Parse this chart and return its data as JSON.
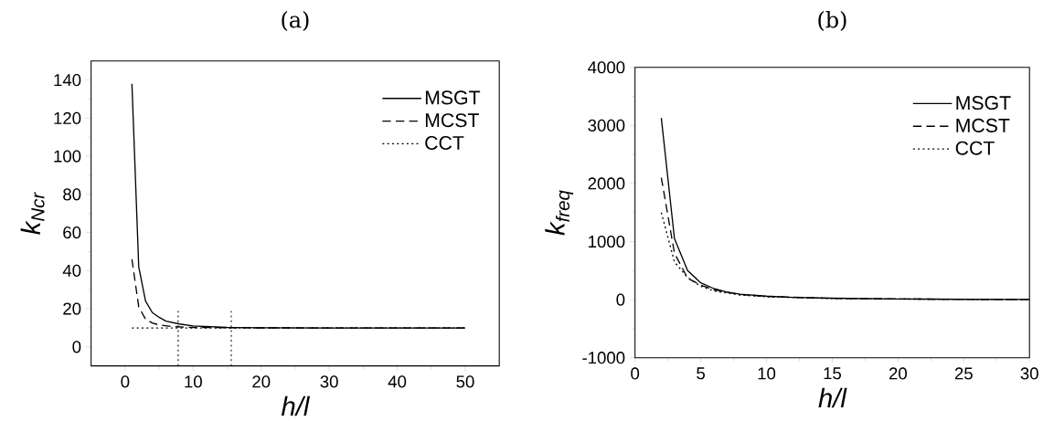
{
  "chart_data": [
    {
      "type": "line",
      "title": "(a)",
      "xlabel": "h/l",
      "ylabel": "k$_{Ncr}$",
      "xlim": [
        -5,
        55
      ],
      "ylim": [
        -10,
        150
      ],
      "xticks": [
        0,
        10,
        20,
        30,
        40,
        50
      ],
      "yticks": [
        0,
        20,
        40,
        60,
        80,
        100,
        120,
        140
      ],
      "legend": "top right",
      "grid": false,
      "series": [
        {
          "name": "MSGT",
          "color": "#000000",
          "line_style": "solid",
          "x": [
            1,
            2,
            3,
            4,
            5,
            6,
            8,
            10,
            15,
            20,
            30,
            50
          ],
          "values": [
            138,
            42,
            24,
            18,
            15.5,
            13.5,
            12,
            11,
            10.2,
            10,
            9.9,
            9.9
          ]
        },
        {
          "name": "MCST",
          "color": "#000000",
          "line_style": "dashed",
          "x": [
            1,
            2,
            3,
            4,
            5,
            7,
            10,
            20,
            50
          ],
          "values": [
            46,
            21,
            14.5,
            12.5,
            11.5,
            10.6,
            10.2,
            9.95,
            9.9
          ]
        },
        {
          "name": "CCT",
          "color": "#000000",
          "line_style": "dotted",
          "x": [
            1,
            50
          ],
          "values": [
            9.9,
            9.9
          ]
        }
      ],
      "ref_lines": [
        {
          "axis": "x",
          "value": 7.8,
          "line_style": "dotted",
          "color": "#000000"
        },
        {
          "axis": "x",
          "value": 15.6,
          "line_style": "dotted",
          "color": "#000000"
        }
      ]
    },
    {
      "type": "line",
      "title": "(b)",
      "xlabel": "h/l",
      "ylabel": "k$_{freq}$",
      "xlim": [
        0,
        30
      ],
      "ylim": [
        -1000,
        4000
      ],
      "xticks": [
        0,
        5,
        10,
        15,
        20,
        25,
        30
      ],
      "yticks": [
        -1000,
        0,
        1000,
        2000,
        3000,
        4000
      ],
      "legend": "top right",
      "grid": false,
      "series": [
        {
          "name": "MSGT",
          "color": "#000000",
          "line_style": "solid",
          "x": [
            2,
            3,
            4,
            5,
            6,
            7,
            8,
            10,
            12,
            15,
            20,
            25,
            30
          ],
          "values": [
            3130,
            1050,
            500,
            290,
            190,
            130,
            95,
            60,
            40,
            25,
            12,
            6,
            3
          ]
        },
        {
          "name": "MCST",
          "color": "#000000",
          "line_style": "dashed",
          "x": [
            2,
            3,
            4,
            5,
            6,
            8,
            10,
            15,
            20,
            30
          ],
          "values": [
            2100,
            800,
            370,
            250,
            170,
            90,
            55,
            22,
            11,
            3
          ]
        },
        {
          "name": "CCT",
          "color": "#000000",
          "line_style": "dotted",
          "x": [
            2,
            3,
            4,
            5,
            6,
            8,
            10,
            15,
            20,
            30
          ],
          "values": [
            1500,
            650,
            380,
            230,
            150,
            80,
            50,
            20,
            10,
            3
          ]
        }
      ]
    }
  ]
}
